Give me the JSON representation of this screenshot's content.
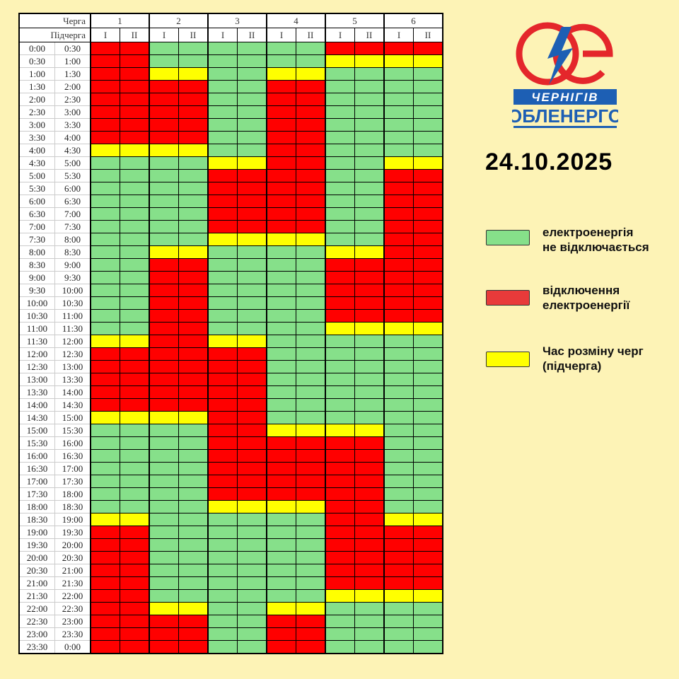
{
  "header": {
    "queue_label": "Черга",
    "subqueue_label": "Підчерга",
    "queues": [
      "1",
      "2",
      "3",
      "4",
      "5",
      "6"
    ],
    "subqueues": [
      "I",
      "II"
    ]
  },
  "times": [
    "0:00",
    "0:30",
    "1:00",
    "1:30",
    "2:00",
    "2:30",
    "3:00",
    "3:30",
    "4:00",
    "4:30",
    "5:00",
    "5:30",
    "6:00",
    "6:30",
    "7:00",
    "7:30",
    "8:00",
    "8:30",
    "9:00",
    "9:30",
    "10:00",
    "10:30",
    "11:00",
    "11:30",
    "12:00",
    "12:30",
    "13:00",
    "13:30",
    "14:00",
    "14:30",
    "15:00",
    "15:30",
    "16:00",
    "16:30",
    "17:00",
    "17:30",
    "18:00",
    "18:30",
    "19:00",
    "19:30",
    "20:00",
    "20:30",
    "21:00",
    "21:30",
    "22:00",
    "22:30",
    "23:00",
    "23:30",
    "0:00"
  ],
  "schedule": {
    "1": "RRRRRRRRYGGGGGGGGGGGGGGYRRRRRYGGGGGGGYRRRRRRRRRR",
    "2": "GGYRRRRRYGGGGGGGYRRRRRRRRRRRRYGGGGGGGGGGGGGGYRRR",
    "3": "GGGGGGGGGYRRRRRYGGGGGGGYRRRRRRRRRRRRYGGGGGGGGGGG",
    "4": "GGYRRRRRRRRRRRRYGGGGGGGGGGGGGGYRRRRRYGGGGGGGYRRR",
    "5": "RYGGGGGGGGGGGGGGYRRRRRYGGGGGGGYRRRRRRRRRRRRYGGGG",
    "6": "RYGGGGGGGYRRRRRRRRRRRRYGGGGGGGGGGGGGGYRRRRRYGGGG"
  },
  "colors": {
    "G": "#86e08a",
    "R": "#ff0000",
    "Y": "#ffff00",
    "background": "#fdf3b6"
  },
  "logo": {
    "line1": "ЧЕРНІГІВ",
    "line2": "ОБЛЕНЕРГО"
  },
  "date": "24.10.2025",
  "legend": [
    {
      "key": "G",
      "line1": "електроенергія",
      "line2": "не відключається"
    },
    {
      "key": "R",
      "line1": "відключення",
      "line2": "електроенергії"
    },
    {
      "key": "Y",
      "line1": "Час розміну черг",
      "line2": "(підчерга)"
    }
  ]
}
